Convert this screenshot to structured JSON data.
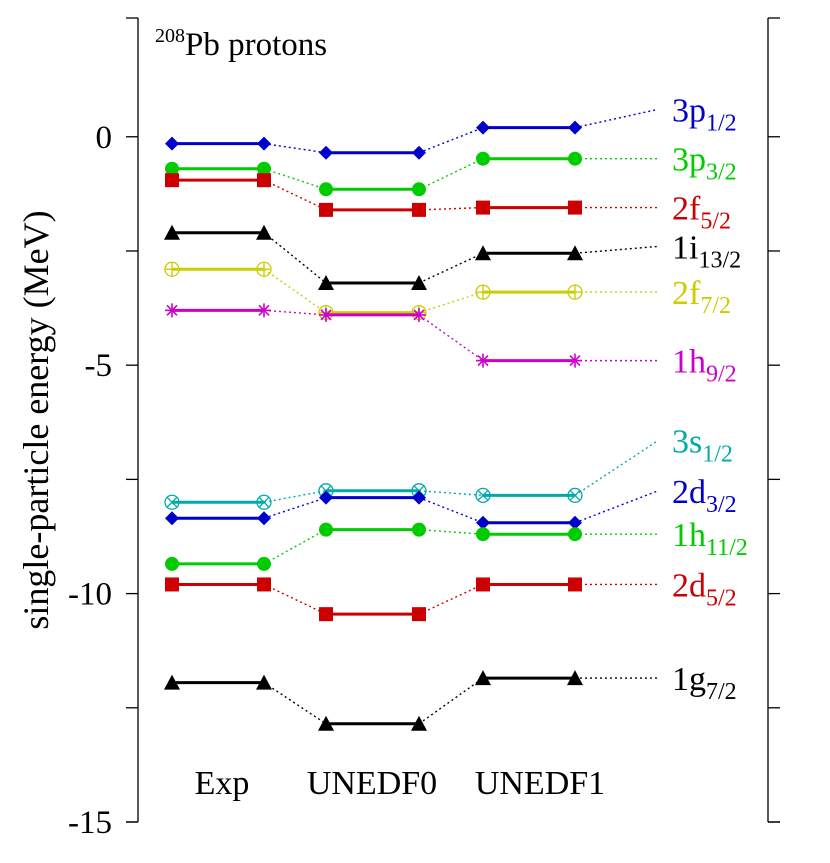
{
  "chart_data": {
    "type": "line",
    "title_prefix": "208",
    "title": "Pb protons",
    "ylabel": "single-particle energy (MeV)",
    "ylim": [
      -15,
      2.6
    ],
    "yticks": [
      0,
      -5,
      -10,
      -15
    ],
    "yticks_unlabeled": [
      -2.5,
      -7.5,
      -12.5
    ],
    "categories": [
      "Exp",
      "UNEDF0",
      "UNEDF1"
    ],
    "series": [
      {
        "name": "3p",
        "sub": "1/2",
        "color": "#0000cc",
        "marker": "diamond",
        "values": [
          -0.15,
          -0.35,
          0.2
        ],
        "label_y": 0.6
      },
      {
        "name": "3p",
        "sub": "3/2",
        "color": "#00cc00",
        "marker": "circle",
        "values": [
          -0.7,
          -1.15,
          -0.48
        ],
        "label_y": -0.48
      },
      {
        "name": "2f",
        "sub": "5/2",
        "color": "#cc0000",
        "marker": "square",
        "values": [
          -0.95,
          -1.6,
          -1.55
        ],
        "label_y": -1.55
      },
      {
        "name": "1i",
        "sub": "13/2",
        "color": "#000000",
        "marker": "triangle",
        "values": [
          -2.1,
          -3.2,
          -2.55
        ],
        "label_y": -2.4
      },
      {
        "name": "2f",
        "sub": "7/2",
        "color": "#cccc00",
        "marker": "circle-plus",
        "values": [
          -2.9,
          -3.85,
          -3.4
        ],
        "label_y": -3.4
      },
      {
        "name": "1h",
        "sub": "9/2",
        "color": "#cc00cc",
        "marker": "star",
        "values": [
          -3.8,
          -3.9,
          -4.9
        ],
        "label_y": -4.9
      },
      {
        "name": "3s",
        "sub": "1/2",
        "color": "#00aaaa",
        "marker": "circle-x",
        "values": [
          -8.0,
          -7.75,
          -7.85
        ],
        "label_y": -6.65
      },
      {
        "name": "2d",
        "sub": "3/2",
        "color": "#0000cc",
        "marker": "diamond",
        "values": [
          -8.35,
          -7.9,
          -8.45
        ],
        "label_y": -7.75
      },
      {
        "name": "1h",
        "sub": "11/2",
        "color": "#00cc00",
        "marker": "circle",
        "values": [
          -9.35,
          -8.6,
          -8.7
        ],
        "label_y": -8.7
      },
      {
        "name": "2d",
        "sub": "5/2",
        "color": "#cc0000",
        "marker": "square",
        "values": [
          -9.8,
          -10.45,
          -9.8
        ],
        "label_y": -9.8
      },
      {
        "name": "1g",
        "sub": "7/2",
        "color": "#000000",
        "marker": "triangle",
        "values": [
          -11.95,
          -12.85,
          -11.85
        ],
        "label_y": -11.85
      }
    ]
  }
}
